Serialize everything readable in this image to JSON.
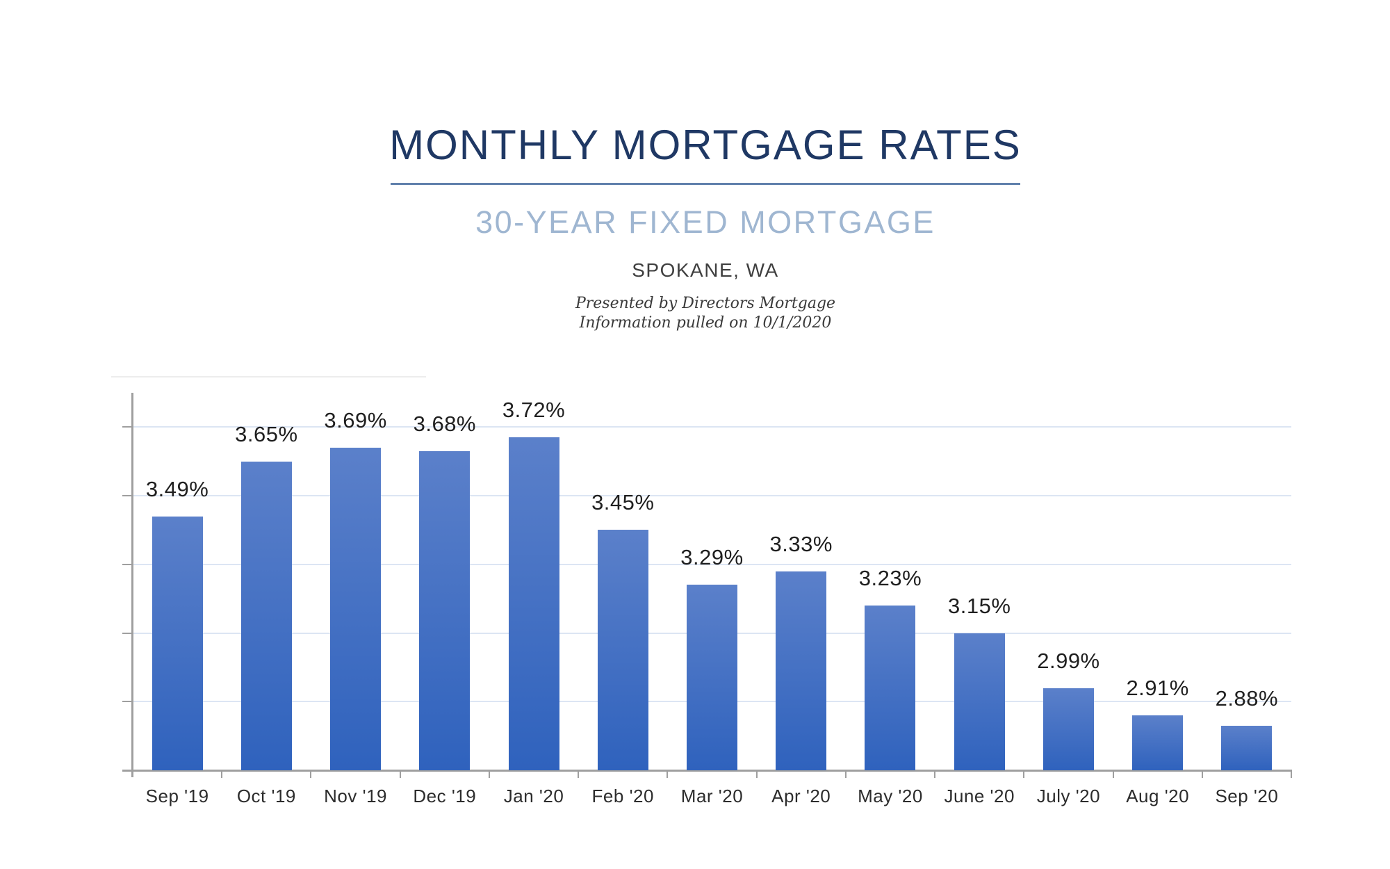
{
  "header": {
    "title": "MONTHLY MORTGAGE RATES",
    "subtitle": "30-YEAR FIXED MORTGAGE",
    "location": "SPOKANE, WA",
    "credit_line1": "Presented by Directors Mortgage",
    "credit_line2": "Information pulled on 10/1/2020"
  },
  "colors": {
    "title": "#1f3864",
    "divider": "#6080ac",
    "subtitle": "#9fb6d1",
    "axis": "#9f9f9f",
    "gridline": "#dce5f3",
    "bar_gradient_top": "#5b80ca",
    "bar_gradient_bottom": "#2f62bd"
  },
  "chart_data": {
    "type": "bar",
    "title": "MONTHLY MORTGAGE RATES",
    "subtitle": "30-YEAR FIXED MORTGAGE",
    "xlabel": "",
    "ylabel": "",
    "categories": [
      "Sep '19",
      "Oct '19",
      "Nov '19",
      "Dec '19",
      "Jan '20",
      "Feb '20",
      "Mar '20",
      "Apr '20",
      "May '20",
      "June '20",
      "July '20",
      "Aug '20",
      "Sep '20"
    ],
    "values": [
      3.49,
      3.65,
      3.69,
      3.68,
      3.72,
      3.45,
      3.29,
      3.33,
      3.23,
      3.15,
      2.99,
      2.91,
      2.88
    ],
    "data_labels": [
      "3.49%",
      "3.65%",
      "3.69%",
      "3.68%",
      "3.72%",
      "3.45%",
      "3.29%",
      "3.33%",
      "3.23%",
      "3.15%",
      "2.99%",
      "2.91%",
      "2.88%"
    ],
    "unit": "%",
    "ylim": [
      2.75,
      3.86
    ],
    "gridline_values": [
      2.95,
      3.15,
      3.35,
      3.55,
      3.75
    ],
    "y_axis_tick_labels_visible": false,
    "grid": true,
    "legend": false
  }
}
